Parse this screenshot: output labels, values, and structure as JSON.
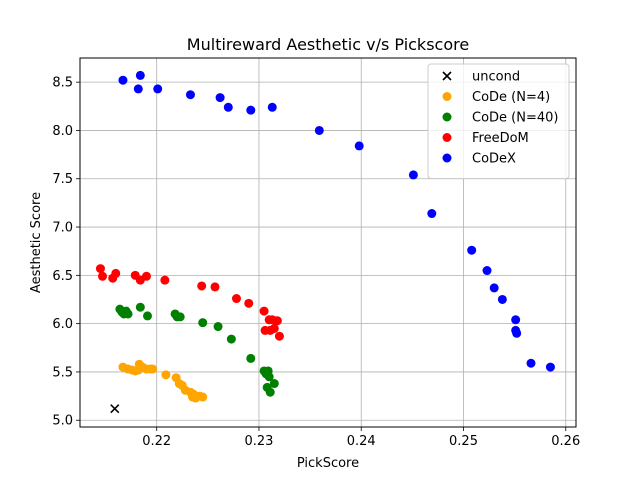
{
  "chart_data": {
    "type": "scatter",
    "title": "Multireward Aesthetic v/s Pickscore",
    "xlabel": "PickScore",
    "ylabel": "Aesthetic Score",
    "xlim": [
      0.2125,
      0.261
    ],
    "ylim": [
      4.93,
      8.75
    ],
    "xticks": [
      "0.22",
      "0.23",
      "0.24",
      "0.25",
      "0.26"
    ],
    "xtick_values": [
      0.22,
      0.23,
      0.24,
      0.25,
      0.26
    ],
    "yticks": [
      "5.0",
      "5.5",
      "6.0",
      "6.5",
      "7.0",
      "7.5",
      "8.0",
      "8.5"
    ],
    "ytick_values": [
      5.0,
      5.5,
      6.0,
      6.5,
      7.0,
      7.5,
      8.0,
      8.5
    ],
    "grid": true,
    "legend_position": "top-right",
    "series": [
      {
        "name": "uncond",
        "color": "#000000",
        "marker": "x",
        "points": [
          [
            0.2159,
            5.12
          ]
        ]
      },
      {
        "name": "CoDe (N=4)",
        "color": "#ffa500",
        "marker": "o",
        "points": [
          [
            0.2167,
            5.55
          ],
          [
            0.2172,
            5.53
          ],
          [
            0.2176,
            5.52
          ],
          [
            0.2179,
            5.51
          ],
          [
            0.2182,
            5.52
          ],
          [
            0.2183,
            5.58
          ],
          [
            0.2186,
            5.55
          ],
          [
            0.219,
            5.53
          ],
          [
            0.2194,
            5.53
          ],
          [
            0.2196,
            5.53
          ],
          [
            0.2209,
            5.47
          ],
          [
            0.2219,
            5.44
          ],
          [
            0.2222,
            5.38
          ],
          [
            0.2225,
            5.36
          ],
          [
            0.2228,
            5.31
          ],
          [
            0.2233,
            5.29
          ],
          [
            0.2235,
            5.24
          ],
          [
            0.2236,
            5.27
          ],
          [
            0.2238,
            5.23
          ],
          [
            0.2242,
            5.25
          ],
          [
            0.2245,
            5.24
          ]
        ]
      },
      {
        "name": "CoDe (N=40)",
        "color": "#008000",
        "marker": "o",
        "points": [
          [
            0.2164,
            6.15
          ],
          [
            0.2166,
            6.12
          ],
          [
            0.2168,
            6.1
          ],
          [
            0.217,
            6.13
          ],
          [
            0.2172,
            6.1
          ],
          [
            0.2184,
            6.17
          ],
          [
            0.2191,
            6.08
          ],
          [
            0.2218,
            6.1
          ],
          [
            0.222,
            6.07
          ],
          [
            0.2223,
            6.07
          ],
          [
            0.2245,
            6.01
          ],
          [
            0.226,
            5.97
          ],
          [
            0.2273,
            5.84
          ],
          [
            0.2292,
            5.64
          ],
          [
            0.2305,
            5.51
          ],
          [
            0.2307,
            5.48
          ],
          [
            0.2309,
            5.51
          ],
          [
            0.231,
            5.45
          ],
          [
            0.2308,
            5.34
          ],
          [
            0.2311,
            5.29
          ],
          [
            0.2315,
            5.38
          ]
        ]
      },
      {
        "name": "FreeDoM",
        "color": "#ff0000",
        "marker": "o",
        "points": [
          [
            0.2145,
            6.57
          ],
          [
            0.2147,
            6.49
          ],
          [
            0.2157,
            6.47
          ],
          [
            0.216,
            6.52
          ],
          [
            0.2179,
            6.5
          ],
          [
            0.2184,
            6.45
          ],
          [
            0.219,
            6.49
          ],
          [
            0.2208,
            6.45
          ],
          [
            0.2244,
            6.39
          ],
          [
            0.2257,
            6.38
          ],
          [
            0.2278,
            6.26
          ],
          [
            0.229,
            6.21
          ],
          [
            0.2305,
            6.13
          ],
          [
            0.231,
            6.04
          ],
          [
            0.2313,
            6.04
          ],
          [
            0.2316,
            6.03
          ],
          [
            0.2318,
            6.03
          ],
          [
            0.2306,
            5.93
          ],
          [
            0.2311,
            5.93
          ],
          [
            0.2315,
            5.95
          ],
          [
            0.232,
            5.87
          ]
        ]
      },
      {
        "name": "CoDeX",
        "color": "#0000ff",
        "marker": "o",
        "points": [
          [
            0.2167,
            8.52
          ],
          [
            0.2184,
            8.57
          ],
          [
            0.2182,
            8.43
          ],
          [
            0.2201,
            8.43
          ],
          [
            0.2233,
            8.37
          ],
          [
            0.2262,
            8.34
          ],
          [
            0.227,
            8.24
          ],
          [
            0.2292,
            8.21
          ],
          [
            0.2313,
            8.24
          ],
          [
            0.2359,
            8.0
          ],
          [
            0.2398,
            7.84
          ],
          [
            0.2451,
            7.54
          ],
          [
            0.2469,
            7.14
          ],
          [
            0.2508,
            6.76
          ],
          [
            0.2523,
            6.55
          ],
          [
            0.253,
            6.37
          ],
          [
            0.2538,
            6.25
          ],
          [
            0.2551,
            6.04
          ],
          [
            0.2551,
            5.93
          ],
          [
            0.2552,
            5.9
          ],
          [
            0.2566,
            5.59
          ],
          [
            0.2585,
            5.55
          ]
        ]
      }
    ]
  }
}
